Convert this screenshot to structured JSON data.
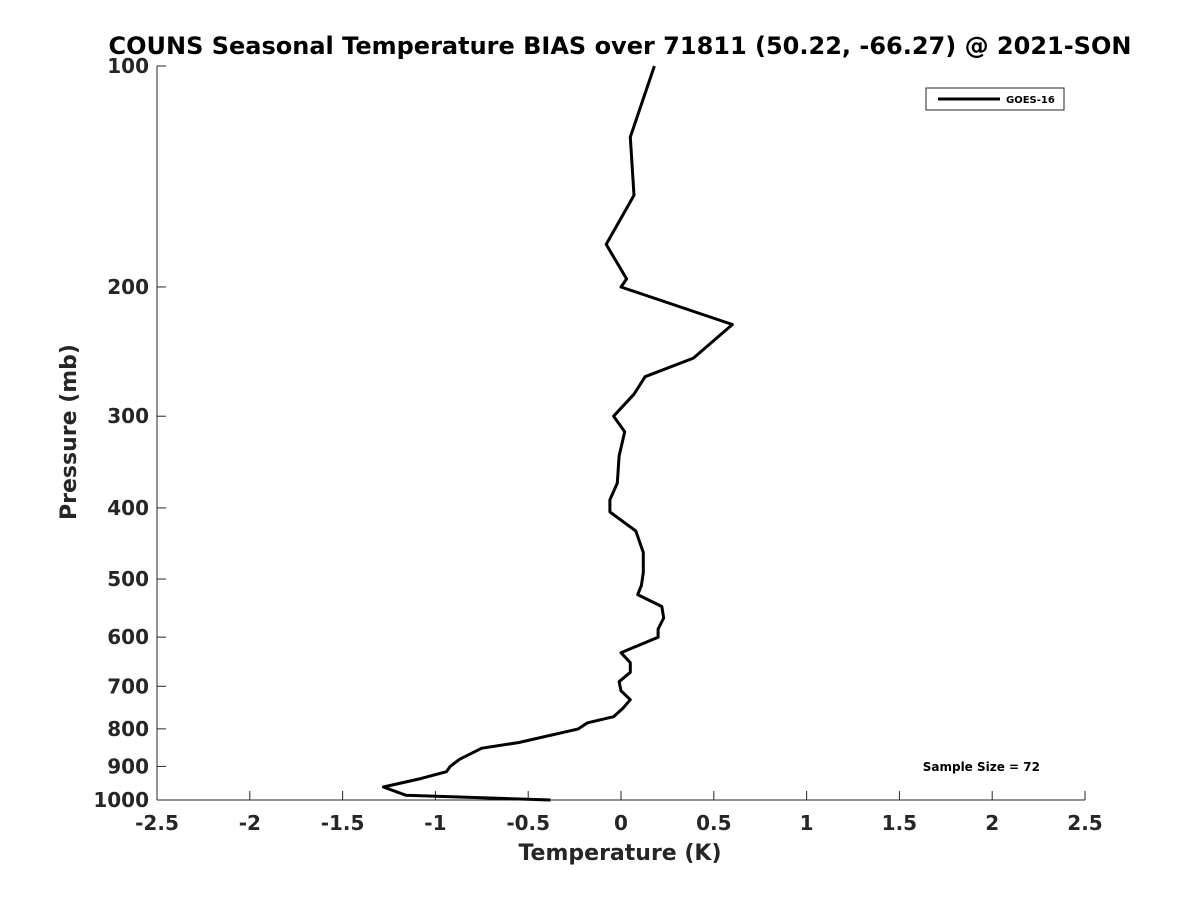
{
  "chart_data": {
    "type": "line",
    "title": "COUNS Seasonal Temperature BIAS over 71811 (50.22, -66.27) @ 2021-SON",
    "xlabel": "Temperature (K)",
    "ylabel": "Pressure (mb)",
    "xlim": [
      -2.5,
      2.5
    ],
    "ylim": [
      100,
      1000
    ],
    "yscale": "log",
    "y_reversed": true,
    "xticks": [
      -2.5,
      -2,
      -1.5,
      -1,
      -0.5,
      0,
      0.5,
      1,
      1.5,
      2,
      2.5
    ],
    "xtick_labels": [
      "-2.5",
      "-2",
      "-1.5",
      "-1",
      "-0.5",
      "0",
      "0.5",
      "1",
      "1.5",
      "2",
      "2.5"
    ],
    "yticks": [
      100,
      200,
      300,
      400,
      500,
      600,
      700,
      800,
      900,
      1000
    ],
    "ytick_labels": [
      "100",
      "200",
      "300",
      "400",
      "500",
      "600",
      "700",
      "800",
      "900",
      "1000"
    ],
    "grid": false,
    "legend_position": "top-right",
    "annotation": "Sample Size = 72",
    "series": [
      {
        "name": "GOES-16",
        "color": "#000000",
        "x": [
          0.18,
          0.05,
          0.07,
          -0.08,
          0.03,
          0.0,
          0.6,
          0.39,
          0.13,
          0.07,
          -0.04,
          0.02,
          -0.01,
          -0.02,
          -0.06,
          -0.06,
          0.08,
          0.12,
          0.12,
          0.11,
          0.09,
          0.22,
          0.23,
          0.2,
          0.2,
          0.0,
          0.05,
          0.05,
          -0.01,
          0.0,
          0.05,
          0.01,
          -0.04,
          -0.18,
          -0.23,
          -0.55,
          -0.75,
          -0.87,
          -0.92,
          -0.94,
          -1.08,
          -1.28,
          -1.16,
          -0.38
        ],
        "y": [
          100,
          125,
          150,
          175,
          195,
          200,
          225,
          250,
          265,
          280,
          300,
          315,
          340,
          370,
          390,
          405,
          430,
          460,
          490,
          510,
          525,
          545,
          565,
          585,
          600,
          630,
          650,
          670,
          690,
          710,
          730,
          750,
          770,
          785,
          800,
          835,
          850,
          880,
          900,
          915,
          935,
          960,
          985,
          1000
        ]
      }
    ]
  }
}
